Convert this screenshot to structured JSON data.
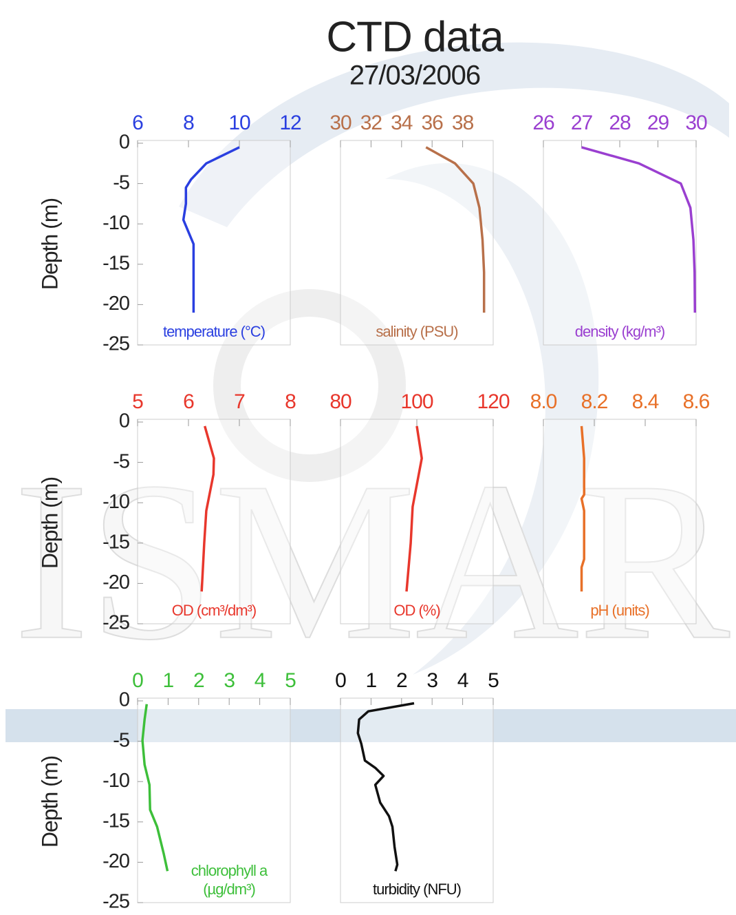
{
  "title": "CTD data",
  "subtitle": "27/03/2006",
  "watermark": "ISMAR",
  "chart_data": [
    {
      "type": "line",
      "xlabel": [
        "temperature (°C)"
      ],
      "ylabel": "Depth  (m)",
      "color": "#2a3fe0",
      "xlim": [
        6,
        12
      ],
      "xticks": [
        6,
        8,
        10,
        12
      ],
      "ylim": [
        -25,
        0
      ],
      "yticks": [
        0,
        -5,
        -10,
        -15,
        -20,
        -25
      ],
      "x": [
        10.0,
        8.7,
        8.1,
        7.9,
        7.9,
        7.8,
        8.0,
        8.2,
        8.2,
        8.2
      ],
      "y": [
        -0.5,
        -2.5,
        -4.5,
        -5.5,
        -7.5,
        -9.5,
        -11,
        -12.5,
        -14,
        -21
      ]
    },
    {
      "type": "line",
      "xlabel": [
        "salinity (PSU)"
      ],
      "color": "#b8704a",
      "xlim": [
        30,
        40
      ],
      "xticks": [
        30,
        32,
        34,
        36,
        38
      ],
      "ylim": [
        -25,
        0
      ],
      "x": [
        35.6,
        37.5,
        38.7,
        39.1,
        39.3,
        39.4,
        39.4
      ],
      "y": [
        -0.5,
        -2.5,
        -5,
        -8,
        -12,
        -16,
        -21
      ]
    },
    {
      "type": "line",
      "xlabel": [
        "density (kg/m³)"
      ],
      "color": "#9a3fd0",
      "xlim": [
        26,
        30
      ],
      "xticks": [
        26,
        27,
        28,
        29,
        30
      ],
      "ylim": [
        -25,
        0
      ],
      "x": [
        27.0,
        28.5,
        29.6,
        29.85,
        29.93,
        29.96,
        29.97
      ],
      "y": [
        -0.5,
        -2.5,
        -5,
        -8,
        -12,
        -16,
        -21
      ]
    },
    {
      "type": "line",
      "xlabel": [
        "OD (cm³/dm³)"
      ],
      "ylabel": "Depth  (m)",
      "color": "#e8372c",
      "xlim": [
        5,
        8
      ],
      "xticks": [
        5,
        6,
        7,
        8
      ],
      "ylim": [
        -25,
        0
      ],
      "yticks": [
        0,
        -5,
        -10,
        -15,
        -20,
        -25
      ],
      "x": [
        6.32,
        6.5,
        6.49,
        6.35,
        6.31,
        6.26
      ],
      "y": [
        -0.5,
        -4.5,
        -6.5,
        -11,
        -15,
        -21
      ]
    },
    {
      "type": "line",
      "xlabel": [
        "OD (%)"
      ],
      "color": "#e8372c",
      "xlim": [
        80,
        120
      ],
      "xticks": [
        80,
        100,
        120
      ],
      "ylim": [
        -25,
        0
      ],
      "x": [
        100,
        101.3,
        98.9,
        98.4,
        97.3
      ],
      "y": [
        -0.5,
        -4.5,
        -10.5,
        -15,
        -21
      ]
    },
    {
      "type": "line",
      "xlabel": [
        "pH (units)"
      ],
      "color": "#e87028",
      "xlim": [
        8.0,
        8.6
      ],
      "xticks": [
        {
          "value": 8,
          "label": "8.0"
        },
        8.2,
        8.4,
        8.6
      ],
      "ylim": [
        -25,
        0
      ],
      "x": [
        8.15,
        8.16,
        8.16,
        8.15,
        8.16,
        8.16,
        8.15,
        8.15
      ],
      "y": [
        -0.5,
        -4.5,
        -9,
        -9.5,
        -11,
        -17,
        -18,
        -21
      ]
    },
    {
      "type": "line",
      "xlabel": [
        "chlorophyll a",
        "(µg/dm³)"
      ],
      "ylabel": "Depth  (m)",
      "color": "#3dbf3a",
      "xlim": [
        0,
        5
      ],
      "xticks": [
        0,
        1,
        2,
        3,
        4,
        5
      ],
      "ylim": [
        -25,
        0
      ],
      "yticks": [
        0,
        -5,
        -10,
        -15,
        -20,
        -25
      ],
      "x": [
        0.3,
        0.23,
        0.16,
        0.23,
        0.39,
        0.41,
        0.64,
        0.86,
        0.98
      ],
      "y": [
        -0.4,
        -2.3,
        -4.9,
        -7.9,
        -10.4,
        -13.5,
        -15.6,
        -19,
        -21.1
      ]
    },
    {
      "type": "line",
      "xlabel": [
        "turbidity (NFU)"
      ],
      "color": "#111111",
      "xlim": [
        0,
        5
      ],
      "xticks": [
        0,
        1,
        2,
        3,
        4,
        5
      ],
      "ylim": [
        -25,
        0
      ],
      "x": [
        2.41,
        0.91,
        0.61,
        0.57,
        0.68,
        0.8,
        1.14,
        1.41,
        1.14,
        1.3,
        1.59,
        1.7,
        1.77,
        1.86,
        1.8
      ],
      "y": [
        -0.3,
        -1.3,
        -2.3,
        -4,
        -5.3,
        -7.4,
        -8.3,
        -9.3,
        -10.4,
        -12.6,
        -14.3,
        -15.6,
        -18.1,
        -20.3,
        -21.1
      ]
    }
  ]
}
